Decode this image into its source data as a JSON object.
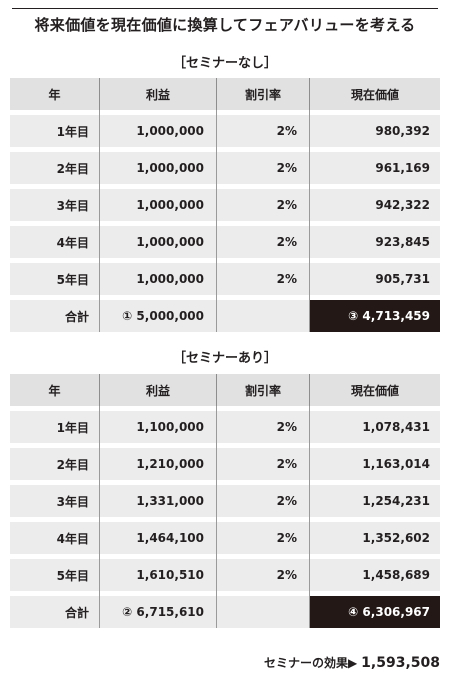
{
  "title": "将来価値を現在価値に換算してフェアバリューを考える",
  "columns": [
    "年",
    "利益",
    "割引率",
    "現在価値"
  ],
  "tables": [
    {
      "label": "［セミナーなし］",
      "rows": [
        {
          "year": "1年目",
          "profit": "1,000,000",
          "rate": "2%",
          "pv": "980,392"
        },
        {
          "year": "2年目",
          "profit": "1,000,000",
          "rate": "2%",
          "pv": "961,169"
        },
        {
          "year": "3年目",
          "profit": "1,000,000",
          "rate": "2%",
          "pv": "942,322"
        },
        {
          "year": "4年目",
          "profit": "1,000,000",
          "rate": "2%",
          "pv": "923,845"
        },
        {
          "year": "5年目",
          "profit": "1,000,000",
          "rate": "2%",
          "pv": "905,731"
        }
      ],
      "total": {
        "label": "合計",
        "profit": "① 5,000,000",
        "rate": "",
        "pv": "③ 4,713,459"
      }
    },
    {
      "label": "［セミナーあり］",
      "rows": [
        {
          "year": "1年目",
          "profit": "1,100,000",
          "rate": "2%",
          "pv": "1,078,431"
        },
        {
          "year": "2年目",
          "profit": "1,210,000",
          "rate": "2%",
          "pv": "1,163,014"
        },
        {
          "year": "3年目",
          "profit": "1,331,000",
          "rate": "2%",
          "pv": "1,254,231"
        },
        {
          "year": "4年目",
          "profit": "1,464,100",
          "rate": "2%",
          "pv": "1,352,602"
        },
        {
          "year": "5年目",
          "profit": "1,610,510",
          "rate": "2%",
          "pv": "1,458,689"
        }
      ],
      "total": {
        "label": "合計",
        "profit": "② 6,715,610",
        "rate": "",
        "pv": "④ 6,306,967"
      }
    }
  ],
  "effect": {
    "label": "セミナーの効果▶",
    "value": "1,593,508"
  },
  "colors": {
    "cell_bg": "#ececec",
    "header_bg": "#e1e1e1",
    "highlight_bg": "#231815",
    "text": "#231f20"
  }
}
